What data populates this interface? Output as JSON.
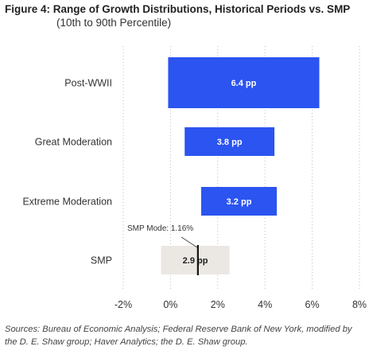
{
  "figure": {
    "title": "Figure 4:  Range of Growth Distributions, Historical Periods vs. SMP",
    "subtitle": "(10th to 90th Percentile)"
  },
  "sources": "Sources: Bureau of Economic Analysis; Federal Reserve Bank of New York, modified by the D. E. Shaw group; Haver Analytics; the D. E. Shaw group.",
  "chart_data": {
    "type": "bar",
    "orientation": "horizontal-range",
    "categories": [
      "Post-WWII",
      "Great Moderation",
      "Extreme Moderation",
      "SMP"
    ],
    "ranges": [
      {
        "category": "Post-WWII",
        "low": -0.1,
        "high": 6.3,
        "label": "6.4 pp",
        "color": "#2b54f0"
      },
      {
        "category": "Great Moderation",
        "low": 0.6,
        "high": 4.4,
        "label": "3.8 pp",
        "color": "#2b54f0"
      },
      {
        "category": "Extreme Moderation",
        "low": 1.3,
        "high": 4.5,
        "label": "3.2 pp",
        "color": "#2b54f0"
      },
      {
        "category": "SMP",
        "low": -0.4,
        "high": 2.5,
        "label": "2.9 pp",
        "color": "#ebe8e4"
      }
    ],
    "annotation": {
      "category": "SMP",
      "value": 1.16,
      "text": "SMP Mode: 1.16%"
    },
    "x_ticks": [
      -2,
      0,
      2,
      4,
      6,
      8
    ],
    "x_tick_labels": [
      "-2%",
      "0%",
      "2%",
      "4%",
      "6%",
      "8%"
    ],
    "xlim": [
      -2,
      8
    ],
    "grid": "vertical-dotted"
  }
}
